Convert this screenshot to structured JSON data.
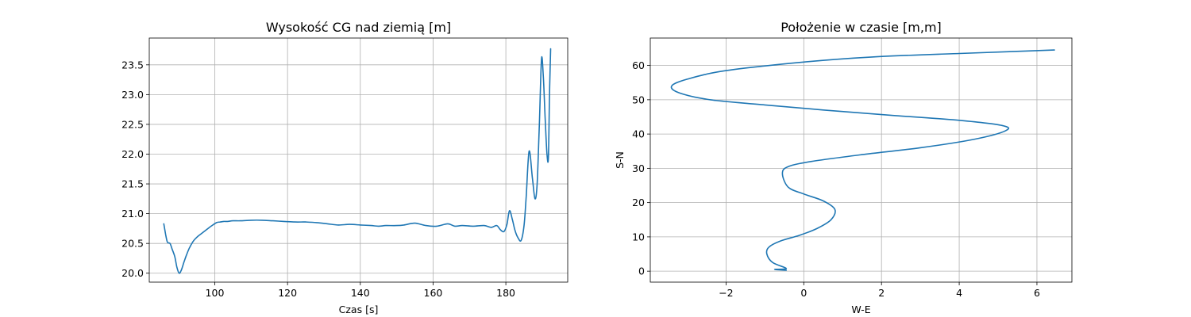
{
  "figure": {
    "background": "#ffffff"
  },
  "chart_data": [
    {
      "type": "line",
      "title": "Wysokość CG nad ziemią [m]",
      "xlabel": "Czas [s]",
      "ylabel": "",
      "xlim": [
        82,
        197
      ],
      "ylim": [
        19.85,
        23.95
      ],
      "xticks": [
        100,
        120,
        140,
        160,
        180
      ],
      "xtick_labels": [
        "100",
        "120",
        "140",
        "160",
        "180"
      ],
      "yticks": [
        20.0,
        20.5,
        21.0,
        21.5,
        22.0,
        22.5,
        23.0,
        23.5
      ],
      "ytick_labels": [
        "20.0",
        "20.5",
        "21.0",
        "21.5",
        "22.0",
        "22.5",
        "23.0",
        "23.5"
      ],
      "grid": true,
      "series": [
        {
          "color": "#1f77b4",
          "x": [
            86,
            86.5,
            87,
            87.7,
            88.3,
            89,
            89.6,
            90.2,
            90.8,
            91.5,
            92.2,
            93,
            94,
            95,
            96,
            97.5,
            99,
            100.5,
            101.5,
            102.5,
            103.5,
            105,
            107,
            110,
            113,
            116,
            119,
            122,
            125,
            128,
            131,
            134,
            137,
            140,
            143,
            145,
            147,
            150,
            152,
            155,
            158,
            161,
            164,
            166,
            168,
            171,
            174,
            176,
            177.5,
            178.5,
            179.5,
            180.3,
            181,
            181.8,
            182.5,
            183.3,
            184.2,
            185,
            185.6,
            186.4,
            187.3,
            188,
            188.6,
            189.2,
            189.8,
            190.3,
            190.8,
            191.3,
            191.7,
            192,
            192.3
          ],
          "y": [
            20.83,
            20.65,
            20.52,
            20.5,
            20.4,
            20.28,
            20.1,
            20.0,
            20.05,
            20.18,
            20.3,
            20.42,
            20.53,
            20.6,
            20.65,
            20.72,
            20.79,
            20.85,
            20.86,
            20.87,
            20.87,
            20.88,
            20.88,
            20.89,
            20.89,
            20.88,
            20.87,
            20.86,
            20.86,
            20.85,
            20.83,
            20.81,
            20.82,
            20.81,
            20.8,
            20.79,
            20.8,
            20.8,
            20.81,
            20.84,
            20.8,
            20.79,
            20.83,
            20.79,
            20.8,
            20.79,
            20.8,
            20.77,
            20.8,
            20.73,
            20.7,
            20.82,
            21.05,
            20.9,
            20.72,
            20.6,
            20.55,
            20.8,
            21.3,
            22.05,
            21.6,
            21.25,
            21.5,
            22.5,
            23.6,
            23.3,
            22.6,
            22.0,
            21.95,
            23.0,
            23.77
          ]
        }
      ]
    },
    {
      "type": "line",
      "title": "Położenie w czasie [m,m]",
      "xlabel": "W-E",
      "ylabel": "S-N",
      "xlim": [
        -3.95,
        6.9
      ],
      "ylim": [
        -3.2,
        68
      ],
      "xticks": [
        -2,
        0,
        2,
        4,
        6
      ],
      "xtick_labels": [
        "−2",
        "0",
        "2",
        "4",
        "6"
      ],
      "yticks": [
        0,
        10,
        20,
        30,
        40,
        50,
        60
      ],
      "ytick_labels": [
        "0",
        "10",
        "20",
        "30",
        "40",
        "50",
        "60"
      ],
      "grid": true,
      "series": [
        {
          "color": "#1f77b4",
          "x": [
            -0.45,
            -0.75,
            -0.45,
            -0.8,
            -0.95,
            -0.9,
            -0.6,
            -0.1,
            0.35,
            0.7,
            0.8,
            0.5,
            0.0,
            -0.4,
            -0.55,
            -0.4,
            0.2,
            1.5,
            3.0,
            4.4,
            5.2,
            5.1,
            4.0,
            2.2,
            0.5,
            -1.0,
            -2.4,
            -3.2,
            -3.4,
            -3.0,
            -2.0,
            0.0,
            1.8,
            4.0,
            5.7,
            6.45
          ],
          "y": [
            0.3,
            0.5,
            0.8,
            2.5,
            5.0,
            7.0,
            8.8,
            10.5,
            12.5,
            15.0,
            18.0,
            20.5,
            22.5,
            24.5,
            28.5,
            30.5,
            32.0,
            34.0,
            36.0,
            38.5,
            41.0,
            42.5,
            44.0,
            45.5,
            47.0,
            48.5,
            50.0,
            52.0,
            54.0,
            56.0,
            58.5,
            61.0,
            62.5,
            63.5,
            64.2,
            64.5
          ]
        }
      ]
    }
  ]
}
